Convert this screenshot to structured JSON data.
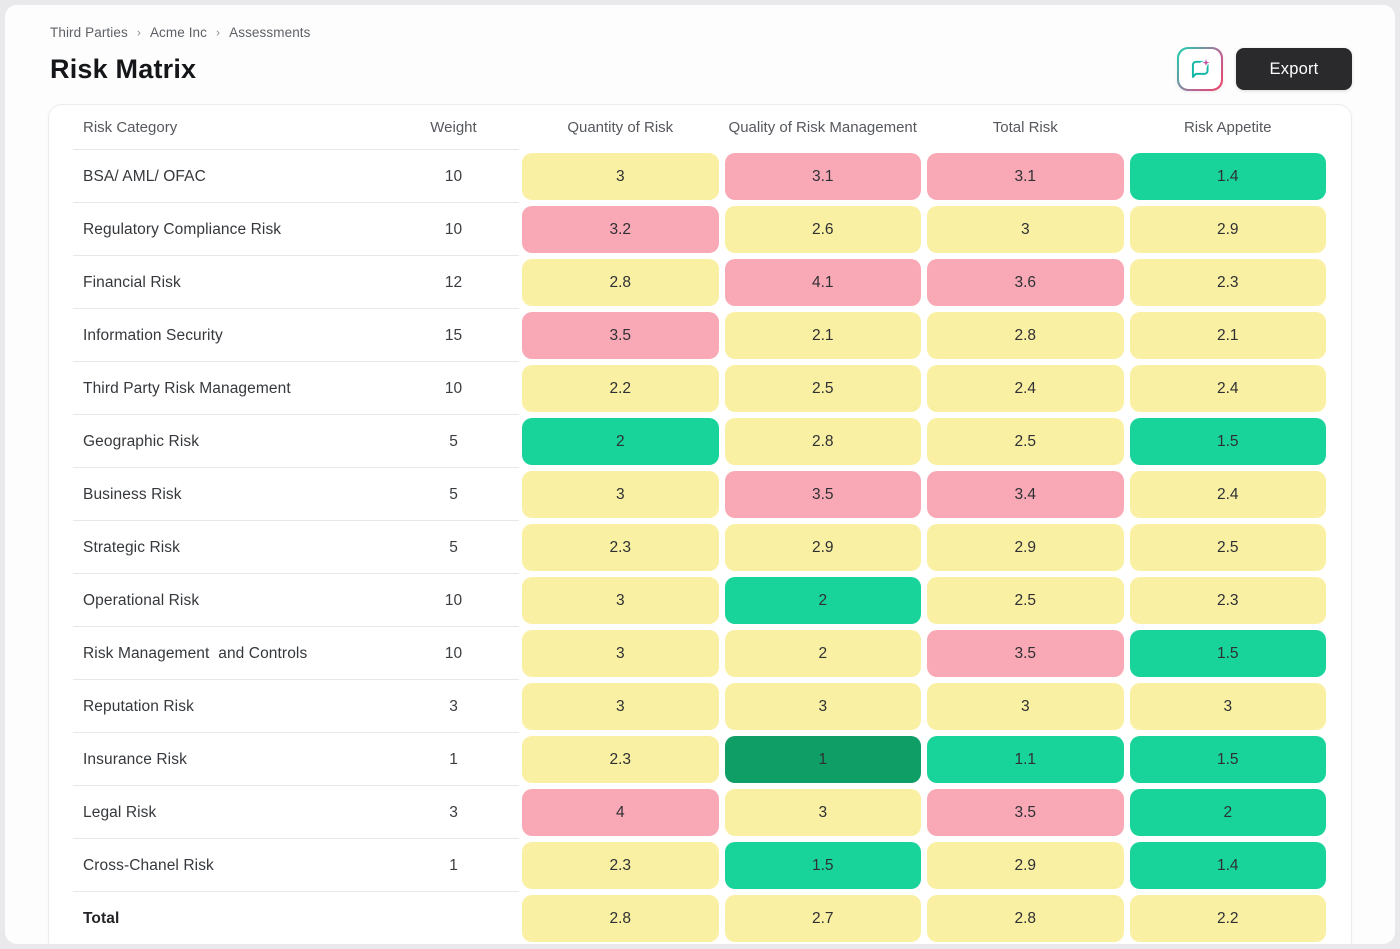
{
  "breadcrumb": {
    "separator": "›",
    "items": [
      "Third Parties",
      "Acme Inc",
      "Assessments"
    ]
  },
  "page_title": "Risk Matrix",
  "toolbar": {
    "export_label": "Export",
    "ai_button_icon": "comment-sparkle-icon"
  },
  "colors": {
    "high": "#f9a9b6",
    "medium": "#faf0a3",
    "low": "#18d49a",
    "very_low": "#0f9e66",
    "accent_teal": "#14b8a6",
    "accent_pink": "#ef4464",
    "export_bg": "#2a2a2c"
  },
  "table": {
    "columns": [
      "Risk Category",
      "Weight",
      "Quantity of Risk",
      "Quality of Risk Management",
      "Total Risk",
      "Risk Appetite"
    ],
    "rows": [
      {
        "category": "BSA/ AML/ OFAC",
        "weight": "10",
        "values": [
          {
            "v": "3",
            "level": "medium"
          },
          {
            "v": "3.1",
            "level": "high"
          },
          {
            "v": "3.1",
            "level": "high"
          },
          {
            "v": "1.4",
            "level": "low"
          }
        ]
      },
      {
        "category": "Regulatory Compliance Risk",
        "weight": "10",
        "values": [
          {
            "v": "3.2",
            "level": "high"
          },
          {
            "v": "2.6",
            "level": "medium"
          },
          {
            "v": "3",
            "level": "medium"
          },
          {
            "v": "2.9",
            "level": "medium"
          }
        ]
      },
      {
        "category": "Financial Risk",
        "weight": "12",
        "values": [
          {
            "v": "2.8",
            "level": "medium"
          },
          {
            "v": "4.1",
            "level": "high"
          },
          {
            "v": "3.6",
            "level": "high"
          },
          {
            "v": "2.3",
            "level": "medium"
          }
        ]
      },
      {
        "category": "Information Security",
        "weight": "15",
        "values": [
          {
            "v": "3.5",
            "level": "high"
          },
          {
            "v": "2.1",
            "level": "medium"
          },
          {
            "v": "2.8",
            "level": "medium"
          },
          {
            "v": "2.1",
            "level": "medium"
          }
        ]
      },
      {
        "category": "Third Party Risk Management",
        "weight": "10",
        "values": [
          {
            "v": "2.2",
            "level": "medium"
          },
          {
            "v": "2.5",
            "level": "medium"
          },
          {
            "v": "2.4",
            "level": "medium"
          },
          {
            "v": "2.4",
            "level": "medium"
          }
        ]
      },
      {
        "category": "Geographic Risk",
        "weight": "5",
        "values": [
          {
            "v": "2",
            "level": "low"
          },
          {
            "v": "2.8",
            "level": "medium"
          },
          {
            "v": "2.5",
            "level": "medium"
          },
          {
            "v": "1.5",
            "level": "low"
          }
        ]
      },
      {
        "category": "Business Risk",
        "weight": "5",
        "values": [
          {
            "v": "3",
            "level": "medium"
          },
          {
            "v": "3.5",
            "level": "high"
          },
          {
            "v": "3.4",
            "level": "high"
          },
          {
            "v": "2.4",
            "level": "medium"
          }
        ]
      },
      {
        "category": "Strategic Risk",
        "weight": "5",
        "values": [
          {
            "v": "2.3",
            "level": "medium"
          },
          {
            "v": "2.9",
            "level": "medium"
          },
          {
            "v": "2.9",
            "level": "medium"
          },
          {
            "v": "2.5",
            "level": "medium"
          }
        ]
      },
      {
        "category": "Operational Risk",
        "weight": "10",
        "values": [
          {
            "v": "3",
            "level": "medium"
          },
          {
            "v": "2",
            "level": "low"
          },
          {
            "v": "2.5",
            "level": "medium"
          },
          {
            "v": "2.3",
            "level": "medium"
          }
        ]
      },
      {
        "category": "Risk Management  and Controls",
        "weight": "10",
        "values": [
          {
            "v": "3",
            "level": "medium"
          },
          {
            "v": "2",
            "level": "medium"
          },
          {
            "v": "3.5",
            "level": "high"
          },
          {
            "v": "1.5",
            "level": "low"
          }
        ]
      },
      {
        "category": "Reputation Risk",
        "weight": "3",
        "values": [
          {
            "v": "3",
            "level": "medium"
          },
          {
            "v": "3",
            "level": "medium"
          },
          {
            "v": "3",
            "level": "medium"
          },
          {
            "v": "3",
            "level": "medium"
          }
        ]
      },
      {
        "category": "Insurance Risk",
        "weight": "1",
        "values": [
          {
            "v": "2.3",
            "level": "medium"
          },
          {
            "v": "1",
            "level": "very_low"
          },
          {
            "v": "1.1",
            "level": "low"
          },
          {
            "v": "1.5",
            "level": "low"
          }
        ]
      },
      {
        "category": "Legal Risk",
        "weight": "3",
        "values": [
          {
            "v": "4",
            "level": "high"
          },
          {
            "v": "3",
            "level": "medium"
          },
          {
            "v": "3.5",
            "level": "high"
          },
          {
            "v": "2",
            "level": "low"
          }
        ]
      },
      {
        "category": "Cross-Chanel Risk",
        "weight": "1",
        "values": [
          {
            "v": "2.3",
            "level": "medium"
          },
          {
            "v": "1.5",
            "level": "low"
          },
          {
            "v": "2.9",
            "level": "medium"
          },
          {
            "v": "1.4",
            "level": "low"
          }
        ]
      }
    ],
    "total_row": {
      "category": "Total",
      "weight": "",
      "values": [
        {
          "v": "2.8",
          "level": "medium"
        },
        {
          "v": "2.7",
          "level": "medium"
        },
        {
          "v": "2.8",
          "level": "medium"
        },
        {
          "v": "2.2",
          "level": "medium"
        }
      ]
    }
  }
}
